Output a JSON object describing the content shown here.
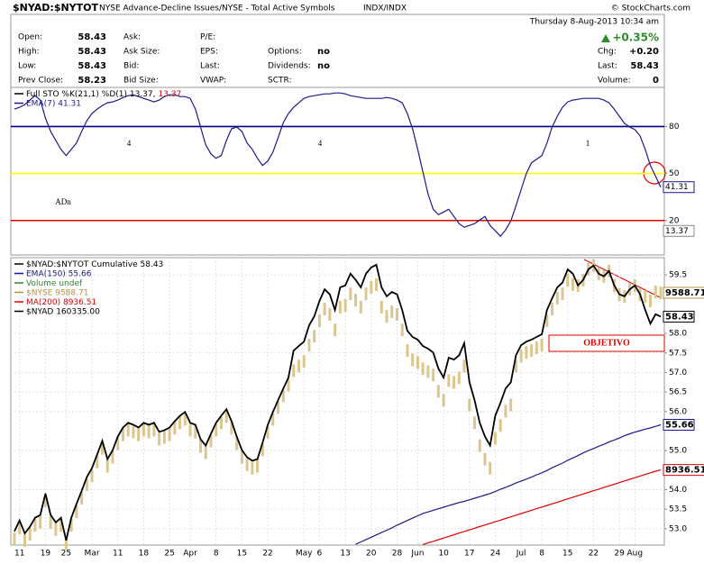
{
  "header": {
    "symbol": "$NYAD:$NYTOT",
    "description": "NYSE Advance-Decline Issues/NYSE - Total Active Symbols",
    "exchange": "INDX/INDX",
    "credit": "© StockCharts.com"
  },
  "quote": {
    "date": "Thursday  8-Aug-2013 10:34 am",
    "change": "+0.35%",
    "rows": [
      [
        {
          "label": "Open:",
          "value": "58.43"
        },
        {
          "label": "Ask:"
        },
        {
          "label": "P/E:"
        }
      ],
      [
        {
          "label": "High:",
          "value": "58.43"
        },
        {
          "label": "Ask Size:"
        },
        {
          "label": "EPS:"
        },
        {
          "label": "Options:",
          "value": "no"
        }
      ],
      [
        {
          "label": "Low:",
          "value": "58.43"
        },
        {
          "label": "Bid:"
        },
        {
          "label": "Last:"
        },
        {
          "label": "Dividends:",
          "value": "no"
        }
      ],
      [
        {
          "label": "Prev Close:",
          "value": "58.23"
        },
        {
          "label": "Bid Size:"
        },
        {
          "label": "VWAP:"
        },
        {
          "label": "SCTR:"
        }
      ]
    ],
    "right": [
      {
        "label": "Chg:",
        "value": "+0.20"
      },
      {
        "label": "Last:",
        "value": "58.43"
      },
      {
        "label": "Volume:",
        "value": "0"
      }
    ]
  },
  "chart_data": [
    {
      "type": "line",
      "legend": [
        [
          {
            "text": "Full STO %K(21,1) %D(1) 13.37,",
            "color": "#000000"
          },
          {
            "text": "13.37",
            "color": "#e00000"
          }
        ],
        [
          {
            "text": "EMA(7) 41.31",
            "color": "#1a1a8c"
          }
        ]
      ],
      "series": [
        {
          "color": "#1a1a8c",
          "values": [
            91.14,
            92.29,
            94.0,
            96.86,
            99.71,
            96.86,
            85.43,
            76.86,
            71.14,
            65.43,
            61.43,
            65.43,
            69.43,
            76.86,
            83.71,
            88.29,
            91.14,
            93.43,
            95.14,
            95.71,
            96.86,
            98.57,
            99.71,
            100.29,
            99.14,
            98.0,
            96.86,
            95.71,
            96.86,
            99.14,
            100.29,
            100.29,
            99.14,
            99.14,
            98.0,
            91.14,
            79.71,
            68.29,
            62.57,
            59.71,
            61.43,
            71.14,
            78.57,
            79.71,
            76.86,
            69.43,
            65.43,
            59.71,
            55.14,
            58.0,
            63.71,
            72.86,
            82.57,
            88.29,
            92.29,
            95.14,
            98.0,
            99.14,
            99.71,
            100.29,
            100.86,
            100.86,
            101.43,
            101.43,
            100.86,
            99.71,
            99.14,
            98.57,
            98.0,
            98.0,
            98.0,
            98.0,
            98.57,
            98.0,
            96.86,
            95.14,
            88.29,
            78.57,
            65.43,
            51.14,
            36.86,
            27.14,
            23.71,
            25.43,
            27.14,
            22.57,
            18.0,
            15.71,
            16.86,
            18.0,
            20.29,
            22.57,
            16.86,
            13.43,
            10.0,
            14.0,
            19.71,
            29.43,
            39.71,
            50.0,
            56.86,
            59.14,
            61.43,
            69.43,
            79.71,
            86.57,
            92.29,
            95.71,
            96.86,
            97.43,
            98.0,
            98.0,
            98.0,
            98.0,
            96.86,
            95.14,
            91.14,
            86.57,
            82.0,
            79.71,
            78.0,
            74.0,
            65.43,
            55.14,
            48.29,
            41.31
          ]
        }
      ],
      "ylim": [
        -2,
        105
      ],
      "yticks": [
        20,
        50,
        80
      ],
      "level_colors": [
        "#e00000",
        "#ffff00",
        "#000080"
      ],
      "tags": [
        41.31,
        13.37
      ],
      "tag_colors": [
        "#1a1a8c",
        "#888888"
      ],
      "annotations": [
        {
          "text": "4",
          "color": "#e03030"
        },
        {
          "text": "4",
          "color": "#e03030"
        },
        {
          "text": "1",
          "color": "#2e9e3e"
        },
        {
          "text": "ADn",
          "color": "#3535c0"
        }
      ]
    },
    {
      "type": "line",
      "categories": [
        null,
        "11",
        null,
        null,
        null,
        null,
        "19",
        null,
        null,
        null,
        "25",
        null,
        null,
        null,
        null,
        "Mar",
        null,
        null,
        null,
        null,
        "11",
        null,
        null,
        null,
        null,
        "18",
        null,
        null,
        null,
        null,
        "25",
        null,
        null,
        null,
        "Apr",
        null,
        null,
        null,
        null,
        "8",
        null,
        null,
        null,
        null,
        "15",
        null,
        null,
        null,
        null,
        "22",
        null,
        null,
        null,
        null,
        null,
        null,
        "May",
        null,
        null,
        "6",
        null,
        null,
        null,
        null,
        "13",
        null,
        null,
        null,
        null,
        "20",
        null,
        null,
        null,
        null,
        "28",
        null,
        null,
        null,
        "Jun",
        null,
        null,
        null,
        null,
        "10",
        null,
        null,
        null,
        null,
        "17",
        null,
        null,
        null,
        null,
        "24",
        null,
        null,
        null,
        null,
        "Jul",
        null,
        null,
        null,
        "8",
        null,
        null,
        null,
        null,
        "15",
        null,
        null,
        null,
        null,
        "22",
        null,
        null,
        null,
        null,
        "29",
        null,
        null,
        "Aug",
        null,
        null,
        null,
        null,
        null
      ],
      "legend": [
        [
          {
            "text": "$NYAD:$NYTOT  Cumulative 58.43",
            "color": "#000000"
          }
        ],
        [
          {
            "text": "EMA(150) 55.66",
            "color": "#1a1a8c"
          }
        ],
        [
          {
            "text": "Volume undef",
            "color": "#2a8a2a"
          }
        ],
        [
          {
            "text": "$NYSE  9588.71",
            "color": "#b89040"
          }
        ],
        [
          {
            "text": "MA(200) 8936.51",
            "color": "#e00000"
          }
        ],
        [
          {
            "text": "$NYAD  160335.00",
            "color": "#000000"
          }
        ]
      ],
      "series": [
        {
          "type": "candle",
          "axis": "y2",
          "color": "#dcc58e",
          "values": [
            8683,
            8723,
            8677,
            8700,
            8733,
            8743,
            8823,
            8743,
            8717,
            8733,
            8667,
            8733,
            8783,
            8833,
            8883,
            8916,
            8966,
            9016,
            8950,
            8983,
            9033,
            9066,
            9083,
            9076,
            9066,
            9083,
            9076,
            9083,
            9050,
            9056,
            9066,
            9090,
            9110,
            9123,
            9083,
            9076,
            9023,
            9000,
            9043,
            9083,
            9110,
            9133,
            9090,
            9033,
            8983,
            8956,
            8943,
            8950,
            9010,
            9076,
            9123,
            9166,
            9209,
            9249,
            9302,
            9319,
            9336,
            9396,
            9429,
            9486,
            9529,
            9509,
            9452,
            9536,
            9542,
            9585,
            9562,
            9536,
            9585,
            9609,
            9619,
            9536,
            9502,
            9519,
            9509,
            9452,
            9376,
            9342,
            9332,
            9309,
            9299,
            9286,
            9226,
            9193,
            9266,
            9259,
            9276,
            9319,
            9176,
            9110,
            9026,
            8976,
            8943,
            9053,
            9100,
            9153,
            9176,
            9319,
            9356,
            9369,
            9376,
            9386,
            9396,
            9486,
            9529,
            9569,
            9585,
            9635,
            9619,
            9615,
            9635,
            9675,
            9689,
            9659,
            9649,
            9669,
            9615,
            9582,
            9575,
            9602,
            9615,
            9582,
            9575,
            9559,
            9592,
            9588.71
          ]
        },
        {
          "color": "#1a1a8c",
          "values": [
            null,
            null,
            null,
            null,
            null,
            null,
            null,
            null,
            null,
            null,
            null,
            null,
            null,
            null,
            null,
            null,
            null,
            null,
            null,
            null,
            null,
            null,
            null,
            null,
            null,
            null,
            null,
            null,
            null,
            null,
            null,
            null,
            null,
            null,
            null,
            null,
            null,
            null,
            null,
            null,
            null,
            null,
            null,
            null,
            null,
            null,
            null,
            null,
            null,
            null,
            null,
            null,
            null,
            null,
            null,
            null,
            null,
            null,
            null,
            null,
            null,
            null,
            null,
            null,
            null,
            null,
            52.6,
            52.66,
            52.72,
            52.78,
            52.84,
            52.9,
            52.96,
            53.02,
            53.09,
            53.15,
            53.21,
            53.27,
            53.33,
            53.39,
            53.43,
            53.47,
            53.51,
            53.55,
            53.59,
            53.63,
            53.67,
            53.7,
            53.74,
            53.78,
            53.82,
            53.86,
            53.9,
            53.95,
            54.01,
            54.06,
            54.11,
            54.17,
            54.22,
            54.27,
            54.32,
            54.38,
            54.43,
            54.49,
            54.56,
            54.62,
            54.68,
            54.75,
            54.81,
            54.87,
            54.94,
            55.0,
            55.05,
            55.11,
            55.16,
            55.22,
            55.27,
            55.32,
            55.38,
            55.43,
            55.47,
            55.51,
            55.55,
            55.58,
            55.62,
            55.66
          ]
        },
        {
          "axis": "y2",
          "color": "#e00000",
          "values": [
            null,
            null,
            null,
            null,
            null,
            null,
            null,
            null,
            null,
            null,
            null,
            null,
            null,
            null,
            null,
            null,
            null,
            null,
            null,
            null,
            null,
            null,
            null,
            null,
            null,
            null,
            null,
            null,
            null,
            null,
            null,
            null,
            null,
            null,
            null,
            null,
            null,
            null,
            null,
            null,
            null,
            null,
            null,
            null,
            null,
            null,
            null,
            null,
            null,
            null,
            null,
            null,
            null,
            null,
            null,
            null,
            null,
            null,
            null,
            null,
            null,
            null,
            null,
            null,
            null,
            null,
            null,
            null,
            null,
            null,
            null,
            null,
            null,
            null,
            null,
            null,
            null,
            null,
            null,
            8662,
            8668,
            8674,
            8680,
            8686,
            8692,
            8698,
            8704,
            8710,
            8716,
            8722,
            8728,
            8734,
            8740,
            8746,
            8752,
            8758,
            8764,
            8770,
            8776,
            8782,
            8788,
            8794,
            8800,
            8806,
            8812,
            8818,
            8824,
            8830,
            8836,
            8842,
            8848,
            8854,
            8860,
            8866,
            8872,
            8878,
            8884,
            8890,
            8896,
            8902,
            8908,
            8914,
            8920,
            8926,
            8932,
            8936.51
          ]
        },
        {
          "color": "#000000",
          "values": [
            52.93,
            53.21,
            52.88,
            53.05,
            53.28,
            53.35,
            53.9,
            53.35,
            53.16,
            53.28,
            52.7,
            53.28,
            53.63,
            53.97,
            54.32,
            54.55,
            54.9,
            55.25,
            54.78,
            55.01,
            55.36,
            55.59,
            55.71,
            55.66,
            55.59,
            55.71,
            55.66,
            55.71,
            55.48,
            55.52,
            55.59,
            55.75,
            55.89,
            55.99,
            55.71,
            55.66,
            55.29,
            55.13,
            55.43,
            55.71,
            55.89,
            56.06,
            55.75,
            55.36,
            55.01,
            54.83,
            54.74,
            54.78,
            55.2,
            55.66,
            55.99,
            56.29,
            56.59,
            56.87,
            57.56,
            57.68,
            57.79,
            58.21,
            58.44,
            58.83,
            59.13,
            59.0,
            58.6,
            59.18,
            59.23,
            59.53,
            59.37,
            59.18,
            59.53,
            59.69,
            59.76,
            59.18,
            58.95,
            59.06,
            59.0,
            58.6,
            58.07,
            57.91,
            57.84,
            57.68,
            57.61,
            57.51,
            57.1,
            56.87,
            57.38,
            57.33,
            57.44,
            57.75,
            56.75,
            56.29,
            55.71,
            55.36,
            55.13,
            55.89,
            56.22,
            56.59,
            56.75,
            57.44,
            57.7,
            57.79,
            57.84,
            57.91,
            57.98,
            58.6,
            58.9,
            59.18,
            59.3,
            59.64,
            59.53,
            59.23,
            59.37,
            59.64,
            59.74,
            59.53,
            59.46,
            59.6,
            59.23,
            59.0,
            58.95,
            59.13,
            59.23,
            59.0,
            58.6,
            58.25,
            58.49,
            58.43
          ]
        }
      ],
      "ylim": [
        52.58,
        59.94
      ],
      "yticks": [
        {
          "value": 53,
          "label": "53.0"
        },
        53.5,
        {
          "value": 54,
          "label": "54.0"
        },
        {
          "value": 55,
          "label": "55.0"
        },
        {
          "value": 56,
          "label": "56.0"
        },
        56.5,
        {
          "value": 57,
          "label": "57.0"
        },
        57.5,
        {
          "value": 58,
          "label": "58.0"
        },
        59.5
      ],
      "y2lim": [
        8660,
        9718
      ],
      "grid": true,
      "tags": [
        58.43,
        55.66
      ],
      "tag_colors": [
        "#000000",
        "#1a1a8c"
      ],
      "y2_tags": [
        9588.71,
        8936.51
      ],
      "y2_tag_colors": [
        "#b89040",
        "#e00000"
      ],
      "annotations": [
        {
          "text": "OBJETIVO",
          "color": "#e00000"
        }
      ]
    }
  ]
}
